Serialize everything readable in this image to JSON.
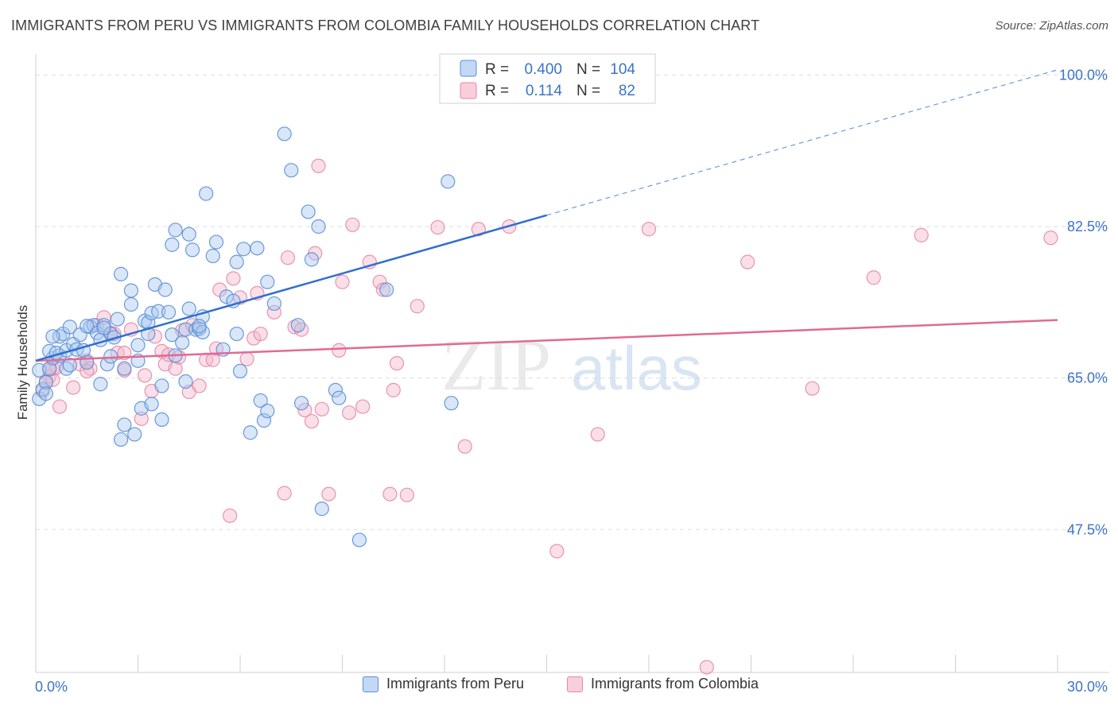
{
  "header": {
    "title": "IMMIGRANTS FROM PERU VS IMMIGRANTS FROM COLOMBIA FAMILY HOUSEHOLDS CORRELATION CHART",
    "source": "Source: ZipAtlas.com"
  },
  "watermark": {
    "part1": "ZIP",
    "part2": "atlas"
  },
  "colors": {
    "peru_fill": "#a9c8f0",
    "peru_stroke": "#5b8fd6",
    "peru_line": "#2f6fd0",
    "colombia_fill": "#f5b9cc",
    "colombia_stroke": "#e48aa7",
    "colombia_line": "#e06a94",
    "grid": "#dddddd",
    "tick_label": "#3a74c9"
  },
  "legend_top": [
    {
      "r_label": "R = ",
      "r_value": "0.400",
      "n_label": "N = ",
      "n_value": "104"
    },
    {
      "r_label": "R = ",
      "r_value": "0.114",
      "n_label": "N = ",
      "n_value": "82"
    }
  ],
  "legend_bottom": [
    {
      "label": "Immigrants from Peru"
    },
    {
      "label": "Immigrants from Colombia"
    }
  ],
  "chart_data": {
    "type": "scatter",
    "title": "IMMIGRANTS FROM PERU VS IMMIGRANTS FROM COLOMBIA FAMILY HOUSEHOLDS CORRELATION CHART",
    "xlabel": "",
    "ylabel": "Family Households",
    "xlim": [
      0,
      30
    ],
    "ylim": [
      31,
      101.5
    ],
    "x_tick_labels": [
      "0.0%",
      "30.0%"
    ],
    "y_ticks": [
      47.5,
      65.0,
      82.5,
      100.0
    ],
    "y_tick_labels": [
      "47.5%",
      "65.0%",
      "82.5%",
      "100.0%"
    ],
    "grid": true,
    "legend_position": "top-center",
    "series": [
      {
        "name": "Immigrants from Peru",
        "r": 0.4,
        "n": 104,
        "trend": {
          "x": [
            0,
            15
          ],
          "y": [
            67.0,
            83.8
          ]
        },
        "trend_extension": {
          "x": [
            15,
            30
          ],
          "y": [
            83.8,
            100.6
          ]
        },
        "points": [
          [
            0.1,
            62.6
          ],
          [
            0.2,
            63.7
          ],
          [
            0.3,
            64.5
          ],
          [
            0.1,
            65.9
          ],
          [
            0.4,
            66.1
          ],
          [
            0.5,
            67.3
          ],
          [
            0.4,
            68.1
          ],
          [
            0.7,
            67.6
          ],
          [
            0.6,
            67.9
          ],
          [
            0.9,
            66.1
          ],
          [
            0.9,
            68.2
          ],
          [
            0.7,
            69.8
          ],
          [
            0.8,
            70.1
          ],
          [
            1.1,
            68.9
          ],
          [
            1.0,
            70.9
          ],
          [
            1.2,
            68.3
          ],
          [
            1.3,
            70.0
          ],
          [
            1.4,
            68.2
          ],
          [
            1.5,
            66.8
          ],
          [
            1.6,
            70.9
          ],
          [
            1.7,
            71.1
          ],
          [
            1.8,
            70.2
          ],
          [
            1.9,
            69.4
          ],
          [
            2.0,
            71.1
          ],
          [
            2.1,
            66.6
          ],
          [
            2.2,
            67.5
          ],
          [
            2.2,
            70.1
          ],
          [
            2.4,
            71.8
          ],
          [
            2.5,
            77.0
          ],
          [
            2.6,
            66.1
          ],
          [
            2.8,
            75.1
          ],
          [
            2.8,
            73.5
          ],
          [
            3.0,
            68.8
          ],
          [
            3.0,
            67.0
          ],
          [
            3.2,
            71.6
          ],
          [
            3.3,
            70.1
          ],
          [
            3.3,
            71.4
          ],
          [
            3.4,
            72.5
          ],
          [
            3.5,
            75.8
          ],
          [
            3.6,
            72.7
          ],
          [
            3.8,
            75.2
          ],
          [
            3.9,
            72.6
          ],
          [
            4.0,
            70.0
          ],
          [
            4.1,
            67.6
          ],
          [
            4.0,
            80.4
          ],
          [
            4.1,
            82.1
          ],
          [
            4.3,
            69.1
          ],
          [
            4.4,
            70.6
          ],
          [
            4.5,
            73.0
          ],
          [
            4.5,
            81.6
          ],
          [
            4.6,
            79.8
          ],
          [
            4.7,
            70.6
          ],
          [
            4.8,
            70.7
          ],
          [
            4.9,
            70.3
          ],
          [
            4.9,
            72.1
          ],
          [
            5.0,
            86.3
          ],
          [
            5.2,
            79.1
          ],
          [
            5.3,
            80.7
          ],
          [
            5.5,
            68.3
          ],
          [
            5.6,
            74.4
          ],
          [
            5.8,
            73.9
          ],
          [
            5.9,
            70.1
          ],
          [
            5.9,
            78.4
          ],
          [
            6.0,
            65.8
          ],
          [
            6.1,
            79.9
          ],
          [
            6.5,
            80.0
          ],
          [
            6.8,
            76.1
          ],
          [
            7.0,
            73.6
          ],
          [
            7.3,
            93.2
          ],
          [
            7.5,
            89.0
          ],
          [
            7.7,
            71.1
          ],
          [
            8.0,
            84.2
          ],
          [
            8.1,
            78.7
          ],
          [
            8.3,
            82.5
          ],
          [
            6.3,
            58.7
          ],
          [
            6.6,
            62.4
          ],
          [
            6.7,
            60.1
          ],
          [
            6.8,
            61.2
          ],
          [
            7.8,
            62.1
          ],
          [
            8.4,
            49.9
          ],
          [
            8.8,
            63.6
          ],
          [
            8.9,
            62.7
          ],
          [
            9.5,
            46.3
          ],
          [
            10.3,
            75.2
          ],
          [
            12.1,
            87.7
          ],
          [
            12.2,
            62.1
          ],
          [
            12.3,
            100.0
          ],
          [
            14.8,
            100.0
          ],
          [
            2.5,
            57.9
          ],
          [
            2.6,
            59.6
          ],
          [
            2.9,
            58.5
          ],
          [
            3.1,
            61.5
          ],
          [
            3.4,
            62.0
          ],
          [
            3.7,
            64.1
          ],
          [
            3.7,
            60.2
          ],
          [
            4.4,
            64.6
          ],
          [
            1.9,
            64.3
          ],
          [
            1.5,
            71.0
          ],
          [
            2.0,
            70.8
          ],
          [
            0.3,
            63.2
          ],
          [
            1.0,
            66.5
          ],
          [
            2.3,
            69.7
          ],
          [
            0.5,
            69.8
          ],
          [
            4.8,
            71.0
          ]
        ]
      },
      {
        "name": "Immigrants from Colombia",
        "r": 0.114,
        "n": 82,
        "trend": {
          "x": [
            0,
            30
          ],
          "y": [
            67.0,
            71.7
          ]
        },
        "points": [
          [
            0.2,
            63.5
          ],
          [
            0.3,
            64.6
          ],
          [
            0.4,
            65.2
          ],
          [
            0.5,
            64.8
          ],
          [
            0.5,
            66.1
          ],
          [
            0.6,
            66.2
          ],
          [
            0.7,
            61.7
          ],
          [
            1.1,
            63.9
          ],
          [
            1.3,
            66.6
          ],
          [
            1.5,
            67.0
          ],
          [
            1.6,
            66.1
          ],
          [
            1.8,
            71.1
          ],
          [
            2.0,
            72.0
          ],
          [
            2.2,
            70.2
          ],
          [
            2.3,
            70.1
          ],
          [
            2.4,
            67.9
          ],
          [
            2.6,
            65.9
          ],
          [
            2.6,
            67.9
          ],
          [
            2.8,
            70.6
          ],
          [
            3.1,
            60.3
          ],
          [
            3.2,
            65.3
          ],
          [
            3.4,
            63.5
          ],
          [
            3.5,
            69.8
          ],
          [
            3.7,
            68.1
          ],
          [
            3.8,
            66.6
          ],
          [
            3.9,
            67.7
          ],
          [
            4.1,
            66.1
          ],
          [
            4.3,
            70.5
          ],
          [
            4.5,
            63.4
          ],
          [
            4.6,
            71.1
          ],
          [
            4.8,
            64.1
          ],
          [
            5.0,
            67.1
          ],
          [
            5.2,
            67.1
          ],
          [
            5.3,
            68.4
          ],
          [
            5.4,
            75.2
          ],
          [
            5.7,
            49.1
          ],
          [
            5.8,
            76.5
          ],
          [
            6.0,
            74.3
          ],
          [
            6.2,
            67.2
          ],
          [
            6.4,
            69.6
          ],
          [
            6.5,
            74.8
          ],
          [
            6.6,
            70.1
          ],
          [
            7.0,
            72.6
          ],
          [
            7.3,
            51.7
          ],
          [
            7.4,
            78.9
          ],
          [
            7.6,
            70.9
          ],
          [
            7.8,
            70.6
          ],
          [
            7.9,
            61.3
          ],
          [
            8.1,
            60.0
          ],
          [
            8.2,
            79.4
          ],
          [
            8.4,
            61.4
          ],
          [
            8.6,
            51.6
          ],
          [
            8.9,
            68.2
          ],
          [
            9.0,
            76.1
          ],
          [
            9.2,
            61.0
          ],
          [
            9.3,
            82.7
          ],
          [
            9.6,
            61.7
          ],
          [
            9.8,
            78.4
          ],
          [
            10.1,
            76.1
          ],
          [
            10.2,
            75.2
          ],
          [
            10.4,
            51.6
          ],
          [
            10.5,
            63.6
          ],
          [
            10.6,
            66.7
          ],
          [
            10.9,
            51.5
          ],
          [
            11.2,
            73.3
          ],
          [
            11.8,
            82.4
          ],
          [
            12.6,
            57.1
          ],
          [
            13.0,
            82.2
          ],
          [
            13.9,
            82.5
          ],
          [
            15.3,
            45.0
          ],
          [
            16.5,
            58.5
          ],
          [
            18.0,
            82.2
          ],
          [
            20.9,
            78.4
          ],
          [
            22.8,
            63.8
          ],
          [
            24.6,
            76.6
          ],
          [
            26.0,
            81.5
          ],
          [
            29.8,
            81.2
          ],
          [
            19.7,
            31.6
          ],
          [
            8.3,
            89.5
          ],
          [
            1.5,
            65.8
          ],
          [
            0.4,
            66.0
          ],
          [
            4.2,
            67.4
          ]
        ]
      }
    ]
  }
}
